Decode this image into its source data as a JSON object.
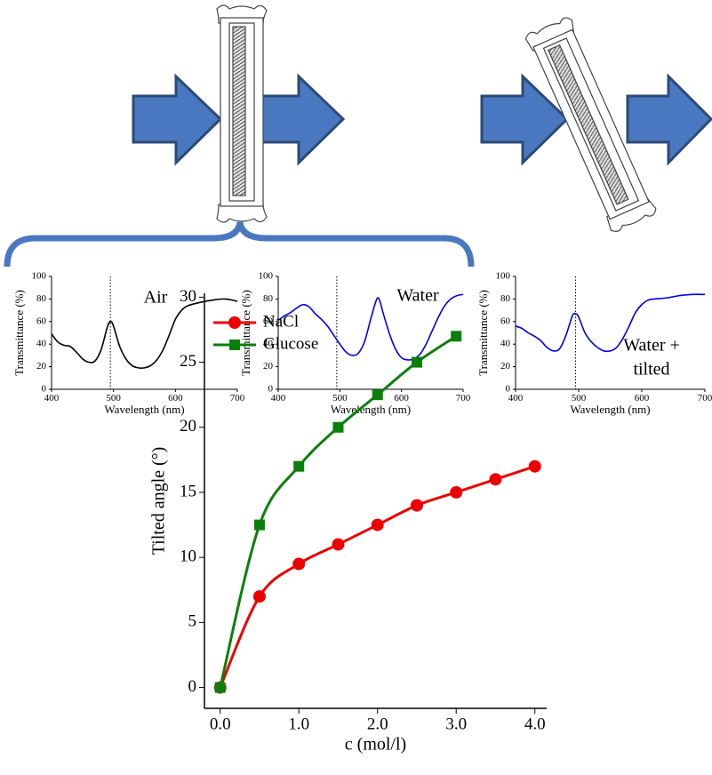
{
  "chart_data": [
    {
      "type": "line",
      "xlabel": "Wavelength (nm)",
      "ylabel": "Transmittance (%)",
      "annotation": [
        "Air"
      ],
      "vline": 495,
      "xlim": [
        400,
        700
      ],
      "xticks": [
        400,
        500,
        600,
        700
      ],
      "ylim": [
        0,
        100
      ],
      "yticks": [
        0,
        20,
        40,
        60,
        80,
        100
      ],
      "series": [
        {
          "color": "#000000",
          "x": [
            400,
            410,
            420,
            430,
            440,
            450,
            460,
            470,
            480,
            490,
            495,
            500,
            510,
            520,
            530,
            540,
            550,
            560,
            570,
            580,
            590,
            600,
            610,
            620,
            640,
            660,
            680,
            700
          ],
          "values": [
            49,
            42,
            39,
            38,
            33,
            27,
            24,
            25,
            35,
            55,
            60,
            56,
            38,
            27,
            21,
            19,
            19,
            21,
            26,
            35,
            48,
            62,
            70,
            74,
            77,
            79,
            80,
            78
          ]
        }
      ]
    },
    {
      "type": "line",
      "xlabel": "Wavelength (nm)",
      "ylabel": "Transmittance (%)",
      "annotation": [
        "Water"
      ],
      "vline": 495,
      "xlim": [
        400,
        700
      ],
      "xticks": [
        400,
        500,
        600,
        700
      ],
      "ylim": [
        0,
        100
      ],
      "yticks": [
        0,
        20,
        40,
        60,
        80,
        100
      ],
      "series": [
        {
          "color": "#0000ee",
          "x": [
            400,
            410,
            420,
            430,
            440,
            450,
            460,
            470,
            480,
            490,
            500,
            510,
            520,
            530,
            540,
            550,
            560,
            565,
            570,
            580,
            590,
            600,
            610,
            620,
            630,
            640,
            650,
            660,
            670,
            680,
            690,
            700
          ],
          "values": [
            61,
            65,
            68,
            72,
            75,
            73,
            67,
            62,
            56,
            48,
            40,
            33,
            30,
            32,
            42,
            62,
            80,
            78,
            68,
            50,
            36,
            28,
            26,
            27,
            31,
            40,
            52,
            64,
            74,
            80,
            83,
            84
          ]
        }
      ]
    },
    {
      "type": "line",
      "xlabel": "Wavelength (nm)",
      "ylabel": "Transmittance (%)",
      "annotation": [
        "Water +",
        "tilted"
      ],
      "vline": 495,
      "xlim": [
        400,
        700
      ],
      "xticks": [
        400,
        500,
        600,
        700
      ],
      "ylim": [
        0,
        100
      ],
      "yticks": [
        0,
        20,
        40,
        60,
        80,
        100
      ],
      "series": [
        {
          "color": "#0000ee",
          "x": [
            400,
            410,
            420,
            430,
            440,
            450,
            460,
            470,
            480,
            490,
            495,
            500,
            510,
            520,
            530,
            540,
            550,
            560,
            570,
            580,
            590,
            600,
            610,
            620,
            640,
            660,
            680,
            700
          ],
          "values": [
            56,
            54,
            50,
            47,
            43,
            37,
            34,
            36,
            48,
            65,
            67,
            64,
            50,
            42,
            37,
            34,
            34,
            37,
            45,
            56,
            68,
            75,
            79,
            80,
            81,
            83,
            84,
            84
          ]
        }
      ]
    },
    {
      "type": "line",
      "xlabel": "c (mol/l)",
      "ylabel": "Tilted angle (°)",
      "legend": "upper left",
      "xlim": [
        -0.2,
        4.15
      ],
      "xticks": [
        {
          "value": 0,
          "label": "0.0"
        },
        {
          "value": 1,
          "label": "1.0"
        },
        {
          "value": 2,
          "label": "2.0"
        },
        {
          "value": 3,
          "label": "3.0"
        },
        {
          "value": 4,
          "label": "4.0"
        }
      ],
      "ylim": [
        -1.6,
        30.3
      ],
      "yticks": [
        0,
        5,
        10,
        15,
        20,
        25,
        30
      ],
      "series": [
        {
          "name": "NaCl",
          "color": "#ee0000",
          "marker": "circle",
          "x": [
            0,
            0.5,
            1,
            1.5,
            2,
            2.5,
            3,
            3.5,
            4
          ],
          "values": [
            0,
            7,
            9.5,
            11,
            12.5,
            14,
            15,
            16,
            17
          ]
        },
        {
          "name": "Glucose",
          "color": "#0a800a",
          "marker": "square",
          "x": [
            0,
            0.5,
            1,
            1.5,
            2,
            2.5,
            3
          ],
          "values": [
            0,
            12.5,
            17,
            20,
            22.5,
            25,
            27
          ]
        }
      ]
    }
  ]
}
